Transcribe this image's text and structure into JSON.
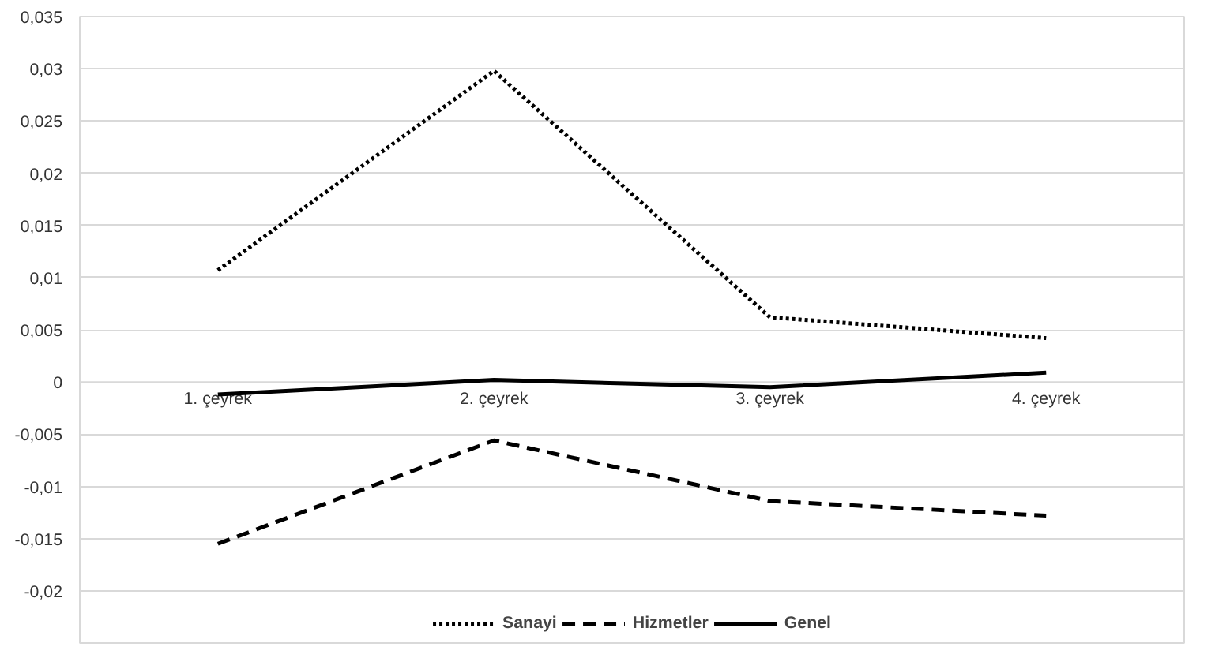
{
  "chart_data": {
    "type": "line",
    "categories": [
      "1. çeyrek",
      "2. çeyrek",
      "3. çeyrek",
      "4. çeyrek"
    ],
    "series": [
      {
        "name": "Sanayi",
        "color": "#000000",
        "line_style": "dotted",
        "values": [
          0.0107,
          0.0298,
          0.0062,
          0.0042
        ]
      },
      {
        "name": "Hizmetler",
        "color": "#000000",
        "line_style": "dashed",
        "values": [
          -0.0155,
          -0.0056,
          -0.0114,
          -0.0128
        ]
      },
      {
        "name": "Genel",
        "color": "#000000",
        "line_style": "solid",
        "values": [
          -0.0012,
          0.0002,
          -0.0005,
          0.0009
        ]
      }
    ],
    "ylim": [
      -0.025,
      0.035
    ],
    "yticks": [
      {
        "value": -0.02,
        "label": "-0,02"
      },
      {
        "value": -0.015,
        "label": "-0,015"
      },
      {
        "value": -0.01,
        "label": "-0,01"
      },
      {
        "value": -0.005,
        "label": "-0,005"
      },
      {
        "value": 0,
        "label": "0"
      },
      {
        "value": 0.005,
        "label": "0,005"
      },
      {
        "value": 0.01,
        "label": "0,01"
      },
      {
        "value": 0.015,
        "label": "0,015"
      },
      {
        "value": 0.02,
        "label": "0,02"
      },
      {
        "value": 0.025,
        "label": "0,025"
      },
      {
        "value": 0.03,
        "label": "0,03"
      },
      {
        "value": 0.035,
        "label": "0,035"
      }
    ],
    "grid": "y",
    "legend": "bottom",
    "marker": "none"
  }
}
